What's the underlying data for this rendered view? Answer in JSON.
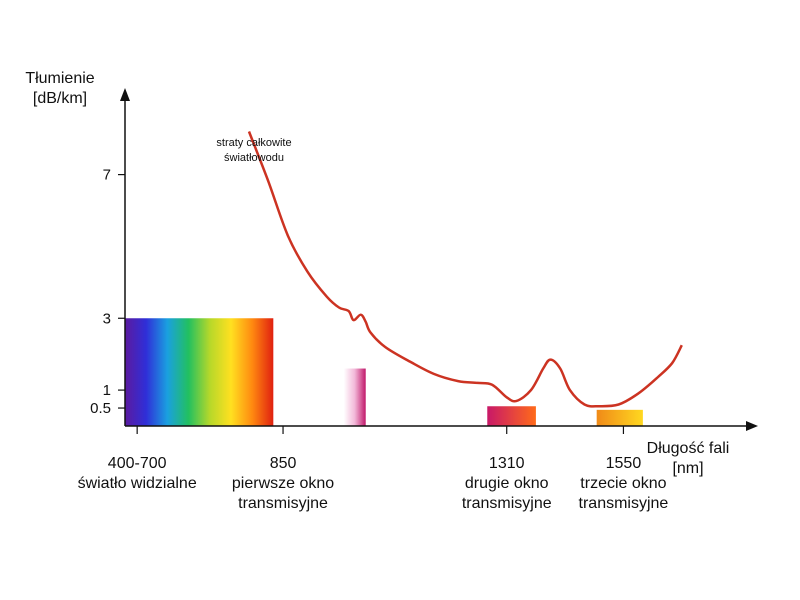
{
  "chart_data": {
    "type": "line",
    "title": "",
    "ylabel_lines": [
      "Tłumienie",
      "[dB/km]"
    ],
    "xlabel_lines": [
      "Długość fali",
      "[nm]"
    ],
    "y_ticks": [
      {
        "value": 7,
        "label": "7"
      },
      {
        "value": 3,
        "label": "3"
      },
      {
        "value": 1,
        "label": "1"
      },
      {
        "value": 0.5,
        "label": "0.5"
      }
    ],
    "categories": [
      {
        "x": 550,
        "lines": [
          "400-700",
          "światło widzialne"
        ]
      },
      {
        "x": 850,
        "lines": [
          "850",
          "pierwsze okno",
          "transmisyjne"
        ]
      },
      {
        "x": 1310,
        "lines": [
          "1310",
          "drugie okno",
          "transmisyjne"
        ]
      },
      {
        "x": 1550,
        "lines": [
          "1550",
          "trzecie okno",
          "transmisyjne"
        ]
      }
    ],
    "series": [
      {
        "name_lines": [
          "straty całkowite",
          "światłowodu"
        ],
        "color": "#cc3322",
        "points": [
          [
            780,
            8.2
          ],
          [
            820,
            6.8
          ],
          [
            860,
            5.3
          ],
          [
            900,
            4.3
          ],
          [
            940,
            3.6
          ],
          [
            965,
            3.3
          ],
          [
            985,
            3.2
          ],
          [
            995,
            2.95
          ],
          [
            1010,
            3.1
          ],
          [
            1020,
            2.9
          ],
          [
            1030,
            2.6
          ],
          [
            1060,
            2.2
          ],
          [
            1110,
            1.8
          ],
          [
            1160,
            1.45
          ],
          [
            1210,
            1.25
          ],
          [
            1250,
            1.2
          ],
          [
            1280,
            1.15
          ],
          [
            1310,
            0.8
          ],
          [
            1330,
            0.7
          ],
          [
            1360,
            1.0
          ],
          [
            1385,
            1.6
          ],
          [
            1400,
            1.85
          ],
          [
            1420,
            1.6
          ],
          [
            1440,
            1.0
          ],
          [
            1470,
            0.6
          ],
          [
            1500,
            0.55
          ],
          [
            1540,
            0.6
          ],
          [
            1580,
            0.9
          ],
          [
            1620,
            1.35
          ],
          [
            1650,
            1.75
          ],
          [
            1670,
            2.25
          ]
        ]
      }
    ],
    "bars": [
      {
        "name": "400-700",
        "x_from": 525,
        "x_to": 830,
        "value": 3.0,
        "gradient": [
          "#5b1aa0",
          "#2f2fd8",
          "#1aa0e0",
          "#22c060",
          "#b6d82a",
          "#ffe020",
          "#ff8a10",
          "#e02010"
        ]
      },
      {
        "name": "850",
        "x_from": 975,
        "x_to": 1020,
        "value": 1.6,
        "gradient": [
          "#ffffff",
          "#f2b7d8",
          "#c0186a"
        ]
      },
      {
        "name": "1310",
        "x_from": 1270,
        "x_to": 1370,
        "value": 0.55,
        "gradient": [
          "#c81868",
          "#ff6a1a"
        ]
      },
      {
        "name": "1550",
        "x_from": 1495,
        "x_to": 1590,
        "value": 0.45,
        "gradient": [
          "#f08a18",
          "#ffd820"
        ]
      }
    ],
    "xlim": [
      525,
      1800
    ],
    "ylim": [
      0,
      9.3
    ],
    "grid": false,
    "legend": "none"
  }
}
